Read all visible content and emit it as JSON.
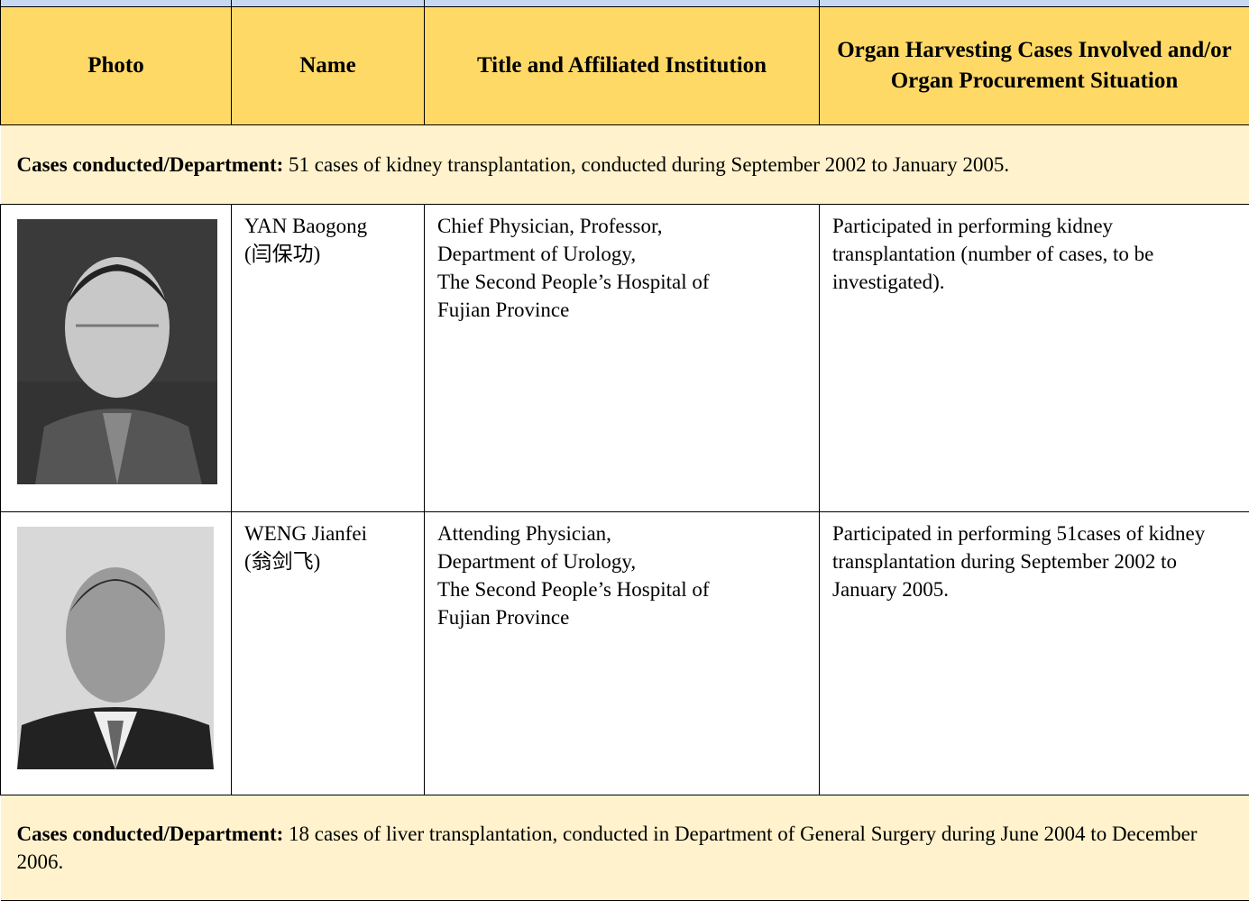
{
  "header": {
    "columns": [
      "Photo",
      "Name",
      "Title and Affiliated Institution",
      "Organ Harvesting Cases Involved and/or Organ Procurement Situation"
    ]
  },
  "sections": [
    {
      "label": "Cases conducted/Department:",
      "text": "51 cases of kidney transplantation, conducted during September 2002 to January 2005.",
      "rows": [
        {
          "name": [
            "YAN Baogong",
            "(闫保功)"
          ],
          "title": [
            "Chief Physician, Professor,",
            "Department of Urology,",
            "The Second People’s Hospital of",
            "Fujian Province"
          ],
          "cases": "Participated in performing kidney transplantation (number of cases, to be investigated)."
        },
        {
          "name": [
            "WENG Jianfei",
            "(翁剑飞)"
          ],
          "title": [
            "Attending Physician,",
            "Department of Urology,",
            "The Second People’s Hospital of",
            "Fujian Province"
          ],
          "cases": "Participated in performing  51cases of kidney transplantation during September 2002 to January 2005."
        }
      ]
    },
    {
      "label": "Cases conducted/Department:",
      "text": "18 cases of liver transplantation, conducted in Department of General Surgery during June 2004 to December 2006."
    }
  ]
}
